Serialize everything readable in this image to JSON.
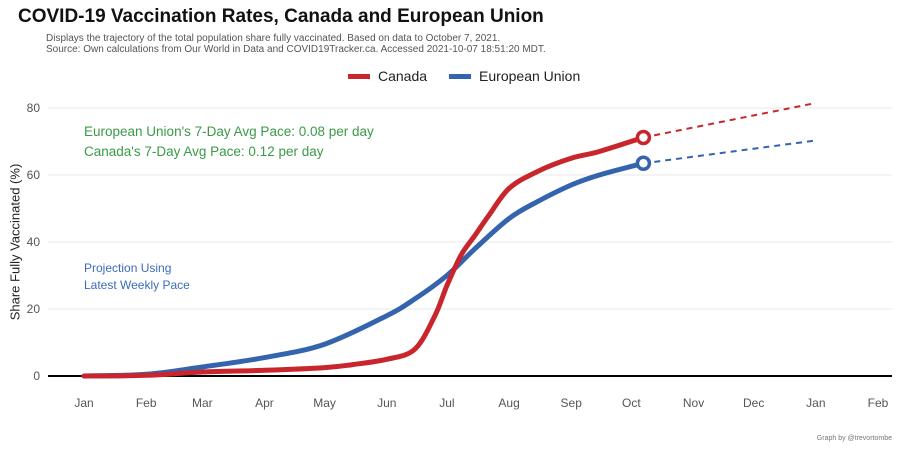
{
  "chart_data": {
    "type": "line",
    "title": "COVID-19 Vaccination Rates, Canada and European Union",
    "subtitle_lines": [
      "Displays the trajectory of the total population share fully vaccinated. Based on data to October 7, 2021.",
      "Source: Own calculations from Our World in Data and COVID19Tracker.ca. Accessed 2021-10-07 18:51:20 MDT."
    ],
    "xlabel": "",
    "ylabel": "Share Fully Vaccinated (%)",
    "x_ticks": [
      "Jan",
      "Feb",
      "Mar",
      "Apr",
      "May",
      "Jun",
      "Jul",
      "Aug",
      "Sep",
      "Oct",
      "Nov",
      "Dec",
      "Jan",
      "Feb"
    ],
    "x_range": [
      "2021-01-01",
      "2022-02-01"
    ],
    "ylim": [
      0,
      80
    ],
    "y_ticks": [
      0,
      20,
      40,
      60,
      80
    ],
    "grid": true,
    "legend_position": "top",
    "series": [
      {
        "name": "Canada",
        "color": "#c8262c",
        "x": [
          "2021-01-01",
          "2021-02-01",
          "2021-03-01",
          "2021-04-01",
          "2021-05-01",
          "2021-05-15",
          "2021-06-01",
          "2021-06-15",
          "2021-06-25",
          "2021-07-01",
          "2021-07-08",
          "2021-07-15",
          "2021-07-22",
          "2021-08-01",
          "2021-08-15",
          "2021-09-01",
          "2021-09-15",
          "2021-10-07"
        ],
        "values": [
          0,
          0.2,
          1.2,
          1.7,
          2.5,
          3.4,
          5.0,
          8.0,
          18.0,
          27.0,
          36.0,
          42.0,
          48.0,
          56.0,
          61.0,
          65.0,
          67.0,
          71.2
        ]
      },
      {
        "name": "European Union",
        "color": "#3464ad",
        "x": [
          "2021-01-01",
          "2021-02-01",
          "2021-03-01",
          "2021-04-01",
          "2021-05-01",
          "2021-06-01",
          "2021-06-15",
          "2021-07-01",
          "2021-07-15",
          "2021-08-01",
          "2021-08-15",
          "2021-09-01",
          "2021-09-15",
          "2021-10-07"
        ],
        "values": [
          0,
          0.5,
          2.7,
          5.5,
          9.5,
          18.0,
          23.0,
          30.0,
          38.0,
          47.0,
          52.0,
          57.0,
          60.0,
          63.5
        ]
      }
    ],
    "projections": [
      {
        "series": "Canada",
        "x": [
          "2021-10-07",
          "2022-01-01"
        ],
        "values": [
          71.2,
          81.5
        ]
      },
      {
        "series": "European Union",
        "x": [
          "2021-10-07",
          "2022-01-01"
        ],
        "values": [
          63.5,
          70.3
        ]
      }
    ],
    "annotations": {
      "pace_eu": "European Union's 7-Day Avg Pace: 0.08 per day",
      "pace_canada": "Canada's 7-Day Avg Pace: 0.12 per day",
      "projection_line1": "Projection Using",
      "projection_line2": "Latest Weekly Pace"
    },
    "caption": "Graph by @trevortombe"
  }
}
